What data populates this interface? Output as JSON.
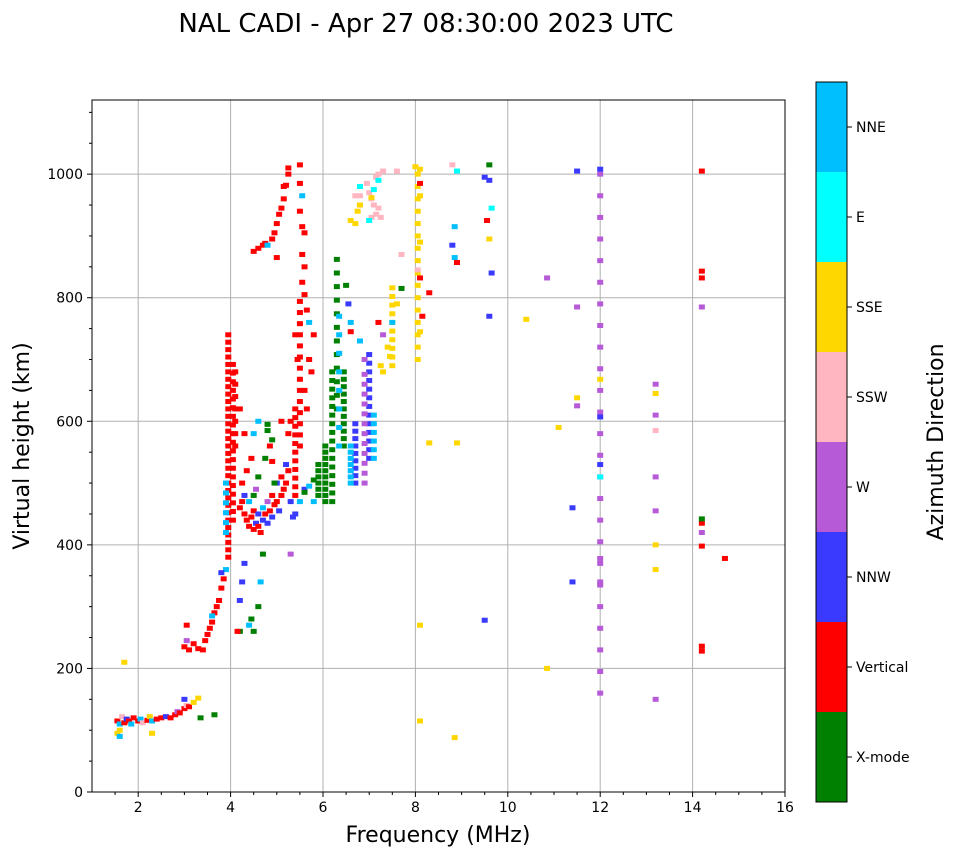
{
  "chart_data": {
    "type": "scatter",
    "title": "NAL CADI - Apr 27 08:30:00 2023 UTC",
    "xlabel": "Frequency (MHz)",
    "ylabel": "Virtual height (km)",
    "xlim": [
      1,
      16
    ],
    "ylim": [
      0,
      1120
    ],
    "xticks": [
      2,
      4,
      6,
      8,
      10,
      12,
      14,
      16
    ],
    "xtick_labels": [
      "2",
      "4",
      "6",
      "8",
      "10",
      "12",
      "14",
      "16"
    ],
    "yticks": [
      0,
      200,
      400,
      600,
      800,
      1000
    ],
    "ytick_labels": [
      "0",
      "200",
      "400",
      "600",
      "800",
      "1000"
    ],
    "grid": true,
    "colorbar": {
      "label": "Azimuth Direction",
      "categories": [
        "X-mode",
        "Vertical",
        "NNW",
        "W",
        "SSW",
        "SSE",
        "E",
        "NNE"
      ],
      "colors": [
        "#008000",
        "#ff0000",
        "#3a3aff",
        "#b65ad8",
        "#ffb6c1",
        "#ffd700",
        "#00ffff",
        "#00bfff"
      ]
    },
    "point_format": "[frequency_MHz, virtual_height_km, category_index]",
    "runs": [
      {
        "f": 3.95,
        "h": [
          380,
          745
        ],
        "step": 12,
        "c": 1
      },
      {
        "f": 4.05,
        "h": [
          440,
          700
        ],
        "step": 14,
        "c": 1
      },
      {
        "f": 4.1,
        "h": [
          560,
          680
        ],
        "step": 20,
        "c": 1
      },
      {
        "f": 3.9,
        "h": [
          420,
          500
        ],
        "step": 16,
        "c": 7
      },
      {
        "f": 12.0,
        "h": [
          160,
          1010
        ],
        "step": 35,
        "c": 3
      },
      {
        "f": 6.3,
        "h": [
          620,
          880
        ],
        "step": 22,
        "c": 0
      },
      {
        "f": 6.2,
        "h": [
          470,
          690
        ],
        "step": 14,
        "c": 0
      },
      {
        "f": 6.45,
        "h": [
          560,
          690
        ],
        "step": 12,
        "c": 0
      },
      {
        "f": 6.35,
        "h": [
          560,
          780
        ],
        "step": 30,
        "c": 7
      },
      {
        "f": 5.5,
        "h": [
          560,
          800
        ],
        "step": 18,
        "c": 1
      },
      {
        "f": 5.4,
        "h": [
          480,
          620
        ],
        "step": 14,
        "c": 1
      },
      {
        "f": 6.05,
        "h": [
          470,
          560
        ],
        "step": 10,
        "c": 0
      },
      {
        "f": 5.9,
        "h": [
          480,
          530
        ],
        "step": 10,
        "c": 0
      },
      {
        "f": 7.0,
        "h": [
          540,
          710
        ],
        "step": 14,
        "c": 2
      },
      {
        "f": 6.9,
        "h": [
          500,
          680
        ],
        "step": 16,
        "c": 3
      },
      {
        "f": 6.7,
        "h": [
          500,
          600
        ],
        "step": 12,
        "c": 2
      },
      {
        "f": 7.1,
        "h": [
          540,
          620
        ],
        "step": 14,
        "c": 7
      },
      {
        "f": 8.05,
        "h": [
          700,
          1010
        ],
        "step": 20,
        "c": 5
      },
      {
        "f": 7.5,
        "h": [
          690,
          820
        ],
        "step": 14,
        "c": 5
      },
      {
        "f": 6.6,
        "h": [
          500,
          560
        ],
        "step": 10,
        "c": 7
      }
    ],
    "points": [
      [
        1.55,
        115,
        1
      ],
      [
        1.6,
        110,
        7
      ],
      [
        1.6,
        100,
        5
      ],
      [
        1.65,
        122,
        4
      ],
      [
        1.7,
        112,
        1
      ],
      [
        1.75,
        118,
        2
      ],
      [
        1.8,
        115,
        1
      ],
      [
        1.85,
        110,
        7
      ],
      [
        1.9,
        120,
        1
      ],
      [
        2.0,
        115,
        1
      ],
      [
        2.05,
        118,
        7
      ],
      [
        2.1,
        112,
        4
      ],
      [
        2.2,
        116,
        1
      ],
      [
        2.25,
        122,
        5
      ],
      [
        2.3,
        115,
        7
      ],
      [
        2.4,
        118,
        1
      ],
      [
        2.5,
        120,
        1
      ],
      [
        2.6,
        122,
        2
      ],
      [
        2.7,
        120,
        1
      ],
      [
        2.8,
        125,
        1
      ],
      [
        2.85,
        130,
        3
      ],
      [
        2.9,
        128,
        1
      ],
      [
        3.0,
        135,
        1
      ],
      [
        3.05,
        140,
        4
      ],
      [
        3.1,
        138,
        1
      ],
      [
        3.2,
        145,
        5
      ],
      [
        3.3,
        152,
        5
      ],
      [
        3.35,
        120,
        0
      ],
      [
        3.65,
        125,
        0
      ],
      [
        1.55,
        95,
        5
      ],
      [
        2.3,
        95,
        5
      ],
      [
        1.7,
        210,
        5
      ],
      [
        3.0,
        150,
        2
      ],
      [
        1.6,
        90,
        7
      ],
      [
        3.0,
        235,
        1
      ],
      [
        3.05,
        245,
        3
      ],
      [
        3.1,
        230,
        1
      ],
      [
        3.2,
        240,
        1
      ],
      [
        3.3,
        232,
        1
      ],
      [
        3.4,
        230,
        1
      ],
      [
        3.45,
        245,
        1
      ],
      [
        3.5,
        255,
        1
      ],
      [
        3.55,
        265,
        1
      ],
      [
        3.6,
        275,
        1
      ],
      [
        3.65,
        290,
        1
      ],
      [
        3.7,
        300,
        1
      ],
      [
        3.75,
        310,
        1
      ],
      [
        3.8,
        330,
        1
      ],
      [
        3.85,
        345,
        1
      ],
      [
        3.9,
        360,
        7
      ],
      [
        3.05,
        270,
        1
      ],
      [
        3.6,
        285,
        7
      ],
      [
        3.8,
        355,
        2
      ],
      [
        4.2,
        460,
        1
      ],
      [
        4.25,
        470,
        1
      ],
      [
        4.3,
        450,
        1
      ],
      [
        4.35,
        440,
        1
      ],
      [
        4.4,
        430,
        1
      ],
      [
        4.45,
        445,
        1
      ],
      [
        4.5,
        425,
        1
      ],
      [
        4.55,
        435,
        2
      ],
      [
        4.6,
        430,
        1
      ],
      [
        4.65,
        420,
        1
      ],
      [
        4.7,
        440,
        2
      ],
      [
        4.75,
        450,
        1
      ],
      [
        4.8,
        435,
        2
      ],
      [
        4.85,
        455,
        1
      ],
      [
        4.9,
        445,
        2
      ],
      [
        4.95,
        465,
        1
      ],
      [
        5.0,
        470,
        1
      ],
      [
        5.05,
        455,
        2
      ],
      [
        5.1,
        480,
        1
      ],
      [
        5.15,
        490,
        1
      ],
      [
        5.2,
        500,
        1
      ],
      [
        5.25,
        520,
        1
      ],
      [
        5.3,
        470,
        2
      ],
      [
        5.35,
        445,
        2
      ],
      [
        4.3,
        480,
        2
      ],
      [
        4.4,
        470,
        7
      ],
      [
        4.5,
        455,
        1
      ],
      [
        4.6,
        450,
        2
      ],
      [
        4.7,
        460,
        7
      ],
      [
        4.8,
        470,
        3
      ],
      [
        4.9,
        480,
        1
      ],
      [
        5.0,
        500,
        2
      ],
      [
        5.1,
        510,
        1
      ],
      [
        5.2,
        530,
        2
      ],
      [
        4.25,
        500,
        1
      ],
      [
        4.35,
        520,
        1
      ],
      [
        4.45,
        540,
        1
      ],
      [
        4.3,
        580,
        1
      ],
      [
        4.2,
        620,
        1
      ],
      [
        4.55,
        490,
        3
      ],
      [
        5.4,
        450,
        2
      ],
      [
        5.5,
        470,
        7
      ],
      [
        5.6,
        490,
        2
      ],
      [
        5.7,
        495,
        7
      ],
      [
        5.8,
        470,
        7
      ],
      [
        4.5,
        875,
        1
      ],
      [
        4.6,
        880,
        1
      ],
      [
        4.7,
        885,
        1
      ],
      [
        4.75,
        888,
        1
      ],
      [
        4.8,
        885,
        7
      ],
      [
        4.9,
        895,
        1
      ],
      [
        4.95,
        905,
        1
      ],
      [
        5.0,
        920,
        1
      ],
      [
        5.05,
        935,
        1
      ],
      [
        5.1,
        945,
        1
      ],
      [
        5.15,
        960,
        1
      ],
      [
        5.15,
        980,
        1
      ],
      [
        5.2,
        982,
        1
      ],
      [
        5.25,
        1000,
        1
      ],
      [
        5.25,
        1010,
        1
      ],
      [
        5.0,
        865,
        1
      ],
      [
        5.5,
        1015,
        1
      ],
      [
        5.5,
        985,
        1
      ],
      [
        5.55,
        965,
        7
      ],
      [
        5.5,
        940,
        1
      ],
      [
        5.55,
        915,
        1
      ],
      [
        5.6,
        905,
        1
      ],
      [
        5.55,
        870,
        1
      ],
      [
        5.6,
        850,
        1
      ],
      [
        5.55,
        825,
        1
      ],
      [
        5.6,
        805,
        1
      ],
      [
        5.65,
        780,
        1
      ],
      [
        5.7,
        760,
        7
      ],
      [
        5.8,
        740,
        1
      ],
      [
        5.7,
        700,
        1
      ],
      [
        5.75,
        680,
        1
      ],
      [
        5.6,
        650,
        1
      ],
      [
        5.65,
        620,
        1
      ],
      [
        5.3,
        600,
        1
      ],
      [
        5.25,
        580,
        1
      ],
      [
        5.45,
        700,
        1
      ],
      [
        5.4,
        740,
        1
      ],
      [
        6.95,
        985,
        4
      ],
      [
        7.0,
        970,
        4
      ],
      [
        7.15,
        995,
        4
      ],
      [
        7.2,
        1000,
        4
      ],
      [
        7.3,
        1005,
        4
      ],
      [
        7.05,
        960,
        4
      ],
      [
        7.1,
        950,
        4
      ],
      [
        7.2,
        945,
        4
      ],
      [
        7.15,
        935,
        4
      ],
      [
        7.05,
        930,
        4
      ],
      [
        7.25,
        930,
        4
      ],
      [
        6.7,
        965,
        4
      ],
      [
        6.8,
        965,
        4
      ],
      [
        7.6,
        1005,
        4
      ],
      [
        6.6,
        925,
        5
      ],
      [
        6.7,
        920,
        5
      ],
      [
        6.75,
        940,
        5
      ],
      [
        6.8,
        950,
        5
      ],
      [
        7.05,
        962,
        5
      ],
      [
        6.8,
        980,
        6
      ],
      [
        7.1,
        975,
        6
      ],
      [
        7.2,
        990,
        6
      ],
      [
        7.0,
        925,
        6
      ],
      [
        4.2,
        260,
        0
      ],
      [
        4.5,
        260,
        0
      ],
      [
        4.6,
        300,
        0
      ],
      [
        4.45,
        280,
        0
      ],
      [
        4.7,
        385,
        0
      ],
      [
        4.8,
        595,
        0
      ],
      [
        4.8,
        585,
        0
      ],
      [
        4.9,
        570,
        0
      ],
      [
        4.75,
        540,
        0
      ],
      [
        4.6,
        510,
        0
      ],
      [
        4.5,
        480,
        0
      ],
      [
        4.95,
        500,
        0
      ],
      [
        5.6,
        485,
        0
      ],
      [
        5.8,
        505,
        0
      ],
      [
        4.2,
        310,
        2
      ],
      [
        4.25,
        340,
        2
      ],
      [
        4.3,
        370,
        2
      ],
      [
        4.65,
        340,
        7
      ],
      [
        4.4,
        270,
        7
      ],
      [
        4.15,
        260,
        1
      ],
      [
        4.9,
        535,
        1
      ],
      [
        4.85,
        560,
        1
      ],
      [
        5.1,
        600,
        1
      ],
      [
        4.6,
        600,
        7
      ],
      [
        4.5,
        580,
        7
      ],
      [
        5.3,
        385,
        3
      ],
      [
        6.6,
        760,
        7
      ],
      [
        6.5,
        820,
        0
      ],
      [
        6.55,
        790,
        2
      ],
      [
        6.6,
        745,
        1
      ],
      [
        6.8,
        730,
        7
      ],
      [
        6.9,
        700,
        3
      ],
      [
        7.2,
        760,
        1
      ],
      [
        7.3,
        740,
        3
      ],
      [
        7.4,
        720,
        5
      ],
      [
        7.5,
        760,
        7
      ],
      [
        7.6,
        790,
        5
      ],
      [
        7.7,
        815,
        0
      ],
      [
        7.25,
        690,
        5
      ],
      [
        7.3,
        680,
        5
      ],
      [
        7.45,
        705,
        5
      ],
      [
        7.7,
        870,
        4
      ],
      [
        8.0,
        1012,
        5
      ],
      [
        8.1,
        1008,
        5
      ],
      [
        8.1,
        985,
        1
      ],
      [
        8.1,
        965,
        5
      ],
      [
        8.1,
        890,
        5
      ],
      [
        8.05,
        845,
        4
      ],
      [
        8.1,
        832,
        1
      ],
      [
        8.3,
        808,
        1
      ],
      [
        8.15,
        770,
        1
      ],
      [
        8.1,
        745,
        5
      ],
      [
        8.3,
        565,
        5
      ],
      [
        8.9,
        565,
        5
      ],
      [
        8.1,
        270,
        5
      ],
      [
        8.1,
        115,
        5
      ],
      [
        8.85,
        88,
        5
      ],
      [
        8.8,
        1015,
        4
      ],
      [
        8.9,
        1005,
        6
      ],
      [
        8.85,
        915,
        7
      ],
      [
        8.8,
        885,
        2
      ],
      [
        8.85,
        865,
        7
      ],
      [
        8.9,
        857,
        1
      ],
      [
        9.6,
        1015,
        0
      ],
      [
        9.5,
        995,
        2
      ],
      [
        9.6,
        990,
        2
      ],
      [
        9.65,
        945,
        6
      ],
      [
        9.55,
        925,
        1
      ],
      [
        9.6,
        895,
        5
      ],
      [
        9.65,
        840,
        2
      ],
      [
        9.6,
        770,
        2
      ],
      [
        9.5,
        278,
        2
      ],
      [
        10.4,
        765,
        5
      ],
      [
        10.85,
        832,
        3
      ],
      [
        10.85,
        200,
        5
      ],
      [
        11.1,
        590,
        5
      ],
      [
        11.5,
        1005,
        2
      ],
      [
        11.5,
        785,
        3
      ],
      [
        11.5,
        638,
        5
      ],
      [
        11.5,
        625,
        3
      ],
      [
        11.4,
        460,
        2
      ],
      [
        11.4,
        340,
        2
      ],
      [
        12.0,
        1008,
        2
      ],
      [
        12.0,
        668,
        5
      ],
      [
        12.0,
        607,
        2
      ],
      [
        12.0,
        530,
        2
      ],
      [
        12.0,
        510,
        6
      ],
      [
        12.0,
        340,
        3
      ],
      [
        12.0,
        378,
        3
      ],
      [
        13.2,
        150,
        3
      ],
      [
        13.2,
        360,
        5
      ],
      [
        13.2,
        400,
        5
      ],
      [
        13.2,
        455,
        3
      ],
      [
        13.2,
        510,
        3
      ],
      [
        13.2,
        585,
        4
      ],
      [
        13.2,
        610,
        3
      ],
      [
        13.2,
        645,
        5
      ],
      [
        13.2,
        660,
        3
      ],
      [
        14.2,
        228,
        1
      ],
      [
        14.2,
        236,
        1
      ],
      [
        14.2,
        398,
        1
      ],
      [
        14.2,
        420,
        3
      ],
      [
        14.2,
        435,
        1
      ],
      [
        14.2,
        442,
        0
      ],
      [
        14.2,
        785,
        3
      ],
      [
        14.2,
        832,
        1
      ],
      [
        14.2,
        843,
        1
      ],
      [
        14.2,
        1005,
        1
      ],
      [
        14.7,
        378,
        1
      ]
    ]
  }
}
